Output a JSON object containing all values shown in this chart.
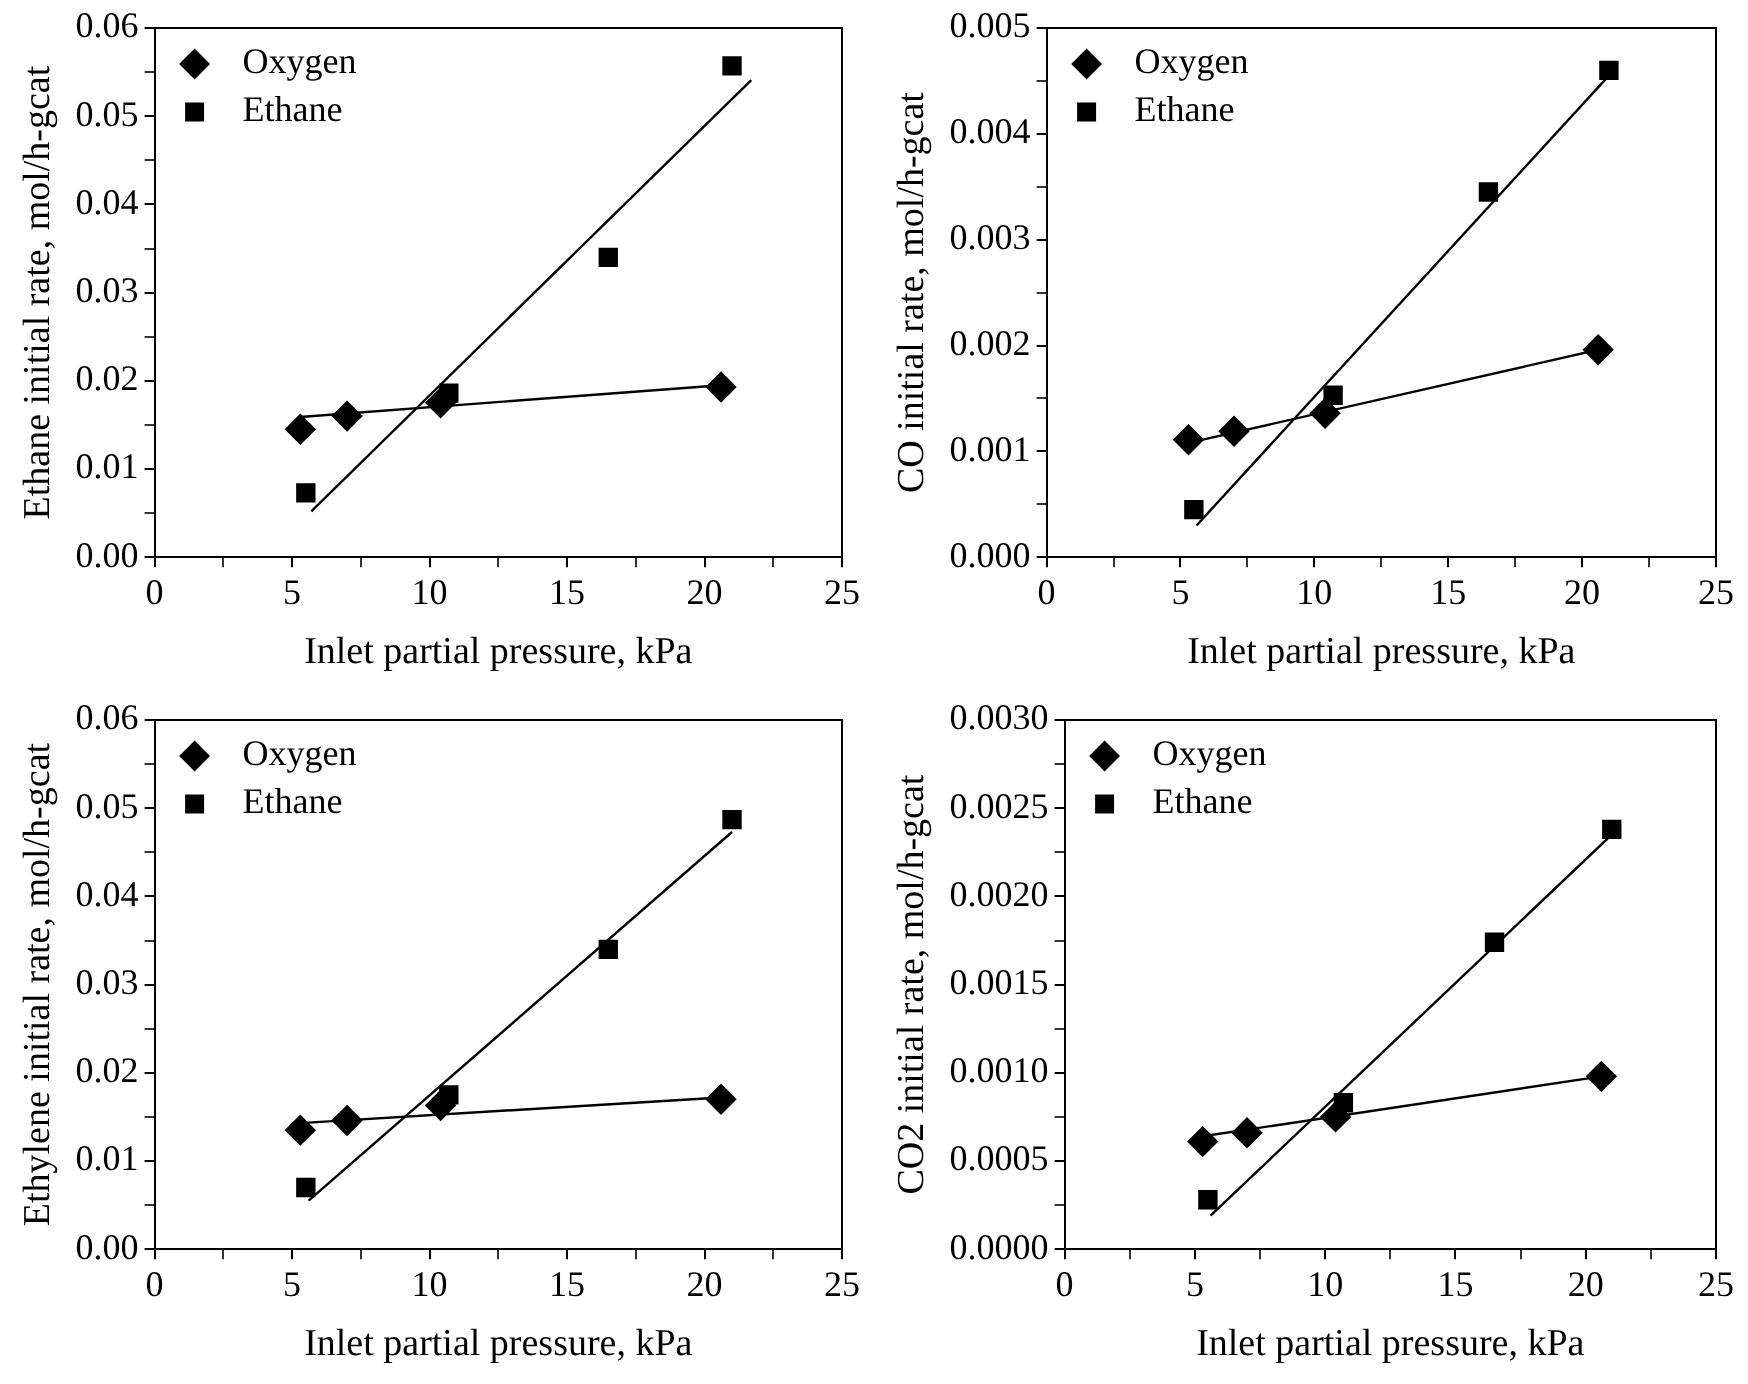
{
  "chart_data": [
    {
      "type": "scatter",
      "ylabel": "Ethane initial rate, mol/h-gcat",
      "xlabel": "Inlet partial pressure, kPa",
      "xlim": [
        0,
        25
      ],
      "xticks": [
        0,
        {
          "value": 2.5,
          "label": null
        },
        5,
        {
          "value": 7.5,
          "label": null
        },
        10,
        {
          "value": 12.5,
          "label": null
        },
        15,
        {
          "value": 17.5,
          "label": null
        },
        20,
        {
          "value": 22.5,
          "label": null
        },
        25
      ],
      "ylim": [
        0,
        0.06
      ],
      "yticks": [
        {
          "value": 0,
          "label": "0.00"
        },
        {
          "value": 0.005,
          "label": null
        },
        0.01,
        {
          "value": 0.015,
          "label": null
        },
        0.02,
        {
          "value": 0.025,
          "label": null
        },
        0.03,
        {
          "value": 0.035,
          "label": null
        },
        0.04,
        {
          "value": 0.045,
          "label": null
        },
        0.05,
        {
          "value": 0.055,
          "label": null
        },
        0.06
      ],
      "grid": false,
      "legend": "top left",
      "series": [
        {
          "name": "Oxygen",
          "color": "#000000",
          "marker": "diamond",
          "x": [
            5.3,
            7,
            10.4,
            20.6
          ],
          "values": [
            0.0145,
            0.016,
            0.0175,
            0.0193
          ]
        },
        {
          "name": "Ethane",
          "color": "#000000",
          "marker": "square",
          "x": [
            5.5,
            10.7,
            16.5,
            21
          ],
          "values": [
            0.0073,
            0.0186,
            0.034,
            0.0557
          ]
        },
        {
          "type": "line",
          "color": "#000000",
          "marker": "none",
          "x": [
            5.3,
            20.6
          ],
          "values": [
            0.0159,
            0.0195
          ]
        },
        {
          "type": "line",
          "color": "#000000",
          "marker": "none",
          "x": [
            5.7,
            21.7
          ],
          "values": [
            0.0052,
            0.0541
          ]
        }
      ]
    },
    {
      "type": "scatter",
      "ylabel": "CO initial rate, mol/h-gcat",
      "xlabel": "Inlet partial pressure, kPa",
      "xlim": [
        0,
        25
      ],
      "xticks": [
        0,
        {
          "value": 2.5,
          "label": null
        },
        5,
        {
          "value": 7.5,
          "label": null
        },
        10,
        {
          "value": 12.5,
          "label": null
        },
        15,
        {
          "value": 17.5,
          "label": null
        },
        20,
        {
          "value": 22.5,
          "label": null
        },
        25
      ],
      "ylim": [
        0,
        0.005
      ],
      "yticks": [
        {
          "value": 0,
          "label": "0.000"
        },
        {
          "value": 0.0005,
          "label": null
        },
        0.001,
        {
          "value": 0.0015,
          "label": null
        },
        0.002,
        {
          "value": 0.0025,
          "label": null
        },
        0.003,
        {
          "value": 0.0035,
          "label": null
        },
        0.004,
        {
          "value": 0.0045,
          "label": null
        },
        0.005
      ],
      "grid": false,
      "legend": "top left",
      "series": [
        {
          "name": "Oxygen",
          "color": "#000000",
          "marker": "diamond",
          "x": [
            5.3,
            7,
            10.4,
            20.6
          ],
          "values": [
            0.00111,
            0.00119,
            0.00136,
            0.00196
          ]
        },
        {
          "name": "Ethane",
          "color": "#000000",
          "marker": "square",
          "x": [
            5.5,
            10.7,
            16.5,
            21
          ],
          "values": [
            0.00045,
            0.00153,
            0.00345,
            0.0046
          ]
        },
        {
          "type": "line",
          "color": "#000000",
          "marker": "none",
          "x": [
            5.3,
            20.6
          ],
          "values": [
            0.00108,
            0.00196
          ]
        },
        {
          "type": "line",
          "color": "#000000",
          "marker": "none",
          "x": [
            5.6,
            21
          ],
          "values": [
            0.0003,
            0.00455
          ]
        }
      ]
    },
    {
      "type": "scatter",
      "ylabel": "Ethylene initial rate, mol/h-gcat",
      "xlabel": "Inlet partial pressure, kPa",
      "xlim": [
        0,
        25
      ],
      "xticks": [
        0,
        {
          "value": 2.5,
          "label": null
        },
        5,
        {
          "value": 7.5,
          "label": null
        },
        10,
        {
          "value": 12.5,
          "label": null
        },
        15,
        {
          "value": 17.5,
          "label": null
        },
        20,
        {
          "value": 22.5,
          "label": null
        },
        25
      ],
      "ylim": [
        0,
        0.06
      ],
      "yticks": [
        {
          "value": 0,
          "label": "0.00"
        },
        {
          "value": 0.005,
          "label": null
        },
        0.01,
        {
          "value": 0.015,
          "label": null
        },
        0.02,
        {
          "value": 0.025,
          "label": null
        },
        0.03,
        {
          "value": 0.035,
          "label": null
        },
        0.04,
        {
          "value": 0.045,
          "label": null
        },
        0.05,
        {
          "value": 0.055,
          "label": null
        },
        0.06
      ],
      "grid": false,
      "legend": "top left",
      "series": [
        {
          "name": "Oxygen",
          "color": "#000000",
          "marker": "diamond",
          "x": [
            5.3,
            7,
            10.4,
            20.6
          ],
          "values": [
            0.0135,
            0.0146,
            0.0163,
            0.017
          ]
        },
        {
          "name": "Ethane",
          "color": "#000000",
          "marker": "square",
          "x": [
            5.5,
            10.7,
            16.5,
            21
          ],
          "values": [
            0.007,
            0.0175,
            0.034,
            0.0487
          ]
        },
        {
          "type": "line",
          "color": "#000000",
          "marker": "none",
          "x": [
            5.3,
            20.6
          ],
          "values": [
            0.0143,
            0.0172
          ]
        },
        {
          "type": "line",
          "color": "#000000",
          "marker": "none",
          "x": [
            5.6,
            21
          ],
          "values": [
            0.0055,
            0.0473
          ]
        }
      ]
    },
    {
      "type": "scatter",
      "ylabel": "CO2 initial rate, mol/h-gcat",
      "xlabel": "Inlet partial pressure, kPa",
      "xlim": [
        0,
        25
      ],
      "xticks": [
        0,
        {
          "value": 2.5,
          "label": null
        },
        5,
        {
          "value": 7.5,
          "label": null
        },
        10,
        {
          "value": 12.5,
          "label": null
        },
        15,
        {
          "value": 17.5,
          "label": null
        },
        20,
        {
          "value": 22.5,
          "label": null
        },
        25
      ],
      "ylim": [
        0,
        0.003
      ],
      "yticks": [
        {
          "value": 0,
          "label": "0.0000"
        },
        {
          "value": 0.00025,
          "label": null
        },
        {
          "value": 0.0005,
          "label": "0.0005"
        },
        {
          "value": 0.00075,
          "label": null
        },
        {
          "value": 0.001,
          "label": "0.0010"
        },
        {
          "value": 0.00125,
          "label": null
        },
        0.0015,
        {
          "value": 0.00175,
          "label": null
        },
        {
          "value": 0.002,
          "label": "0.0020"
        },
        {
          "value": 0.00225,
          "label": null
        },
        0.0025,
        {
          "value": 0.00275,
          "label": null
        },
        {
          "value": 0.003,
          "label": "0.0030"
        }
      ],
      "grid": false,
      "legend": "top left",
      "series": [
        {
          "name": "Oxygen",
          "color": "#000000",
          "marker": "diamond",
          "x": [
            5.3,
            7,
            10.4,
            20.6
          ],
          "values": [
            0.00061,
            0.00066,
            0.00075,
            0.00098
          ]
        },
        {
          "name": "Ethane",
          "color": "#000000",
          "marker": "square",
          "x": [
            5.5,
            10.7,
            16.5,
            21
          ],
          "values": [
            0.00028,
            0.00083,
            0.00174,
            0.00238
          ]
        },
        {
          "type": "line",
          "color": "#000000",
          "marker": "none",
          "x": [
            5.3,
            20.6
          ],
          "values": [
            0.00064,
            0.00098
          ]
        },
        {
          "type": "line",
          "color": "#000000",
          "marker": "none",
          "x": [
            5.6,
            21
          ],
          "values": [
            0.00019,
            0.00235
          ]
        }
      ]
    }
  ]
}
